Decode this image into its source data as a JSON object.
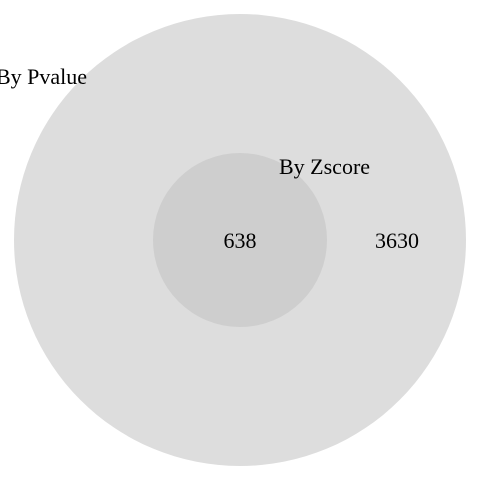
{
  "diagram": {
    "sets": [
      {
        "name": "By Pvalue",
        "color": "#dddddd"
      },
      {
        "name": "By Zscore",
        "color": "#cecece"
      }
    ],
    "regions": {
      "pvalue_only": "3630",
      "intersection": "638"
    }
  }
}
